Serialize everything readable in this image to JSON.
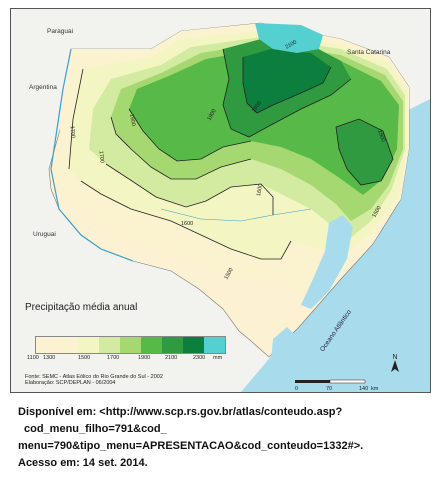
{
  "map": {
    "countries": {
      "paraguai": "Paraguai",
      "argentina": "Argentina",
      "uruguai": "Uruguai",
      "santa_catarina": "Santa Catarina"
    },
    "ocean_label": "Oceano Atlântico",
    "isohyets": [
      "2100",
      "1900",
      "1900",
      "1900",
      "1700",
      "1700",
      "1900",
      "1600",
      "1600",
      "1500",
      "1500"
    ],
    "colors": {
      "water": "#a8dcec",
      "outside": "#f2f2ee",
      "c1100": "#fdf1d4",
      "c1300": "#fbf3cf",
      "c1500": "#f3f5c2",
      "c1700": "#d2eba0",
      "c1900_light": "#a6d872",
      "c1900": "#57b948",
      "c2100": "#2f9a3f",
      "c2300": "#0c7f3f",
      "peak": "#55d0d0"
    }
  },
  "legend": {
    "title": "Precipitação média anual",
    "ticks": [
      "1100",
      "1300",
      "1500",
      "1700",
      "1900",
      "2100",
      "2300",
      "mm"
    ]
  },
  "source": {
    "line1": "Fonte: SEMC - Atlas Eólico do Rio Grande do Sul - 2002",
    "line2": "Elaboração: SCP/DEPLAN - 06/2004"
  },
  "scale": {
    "ticks": [
      "0",
      "70",
      "140"
    ],
    "unit": "km",
    "north": "N"
  },
  "citation": {
    "line1": "Disponível em: <http://www.scp.rs.gov.br/atlas/conteudo.asp?",
    "line2": "cod_menu_filho=791&cod_",
    "line3": "menu=790&tipo_menu=APRESENTACAO&cod_conteudo=1332#>.",
    "line4": "Acesso em: 14 set. 2014."
  }
}
